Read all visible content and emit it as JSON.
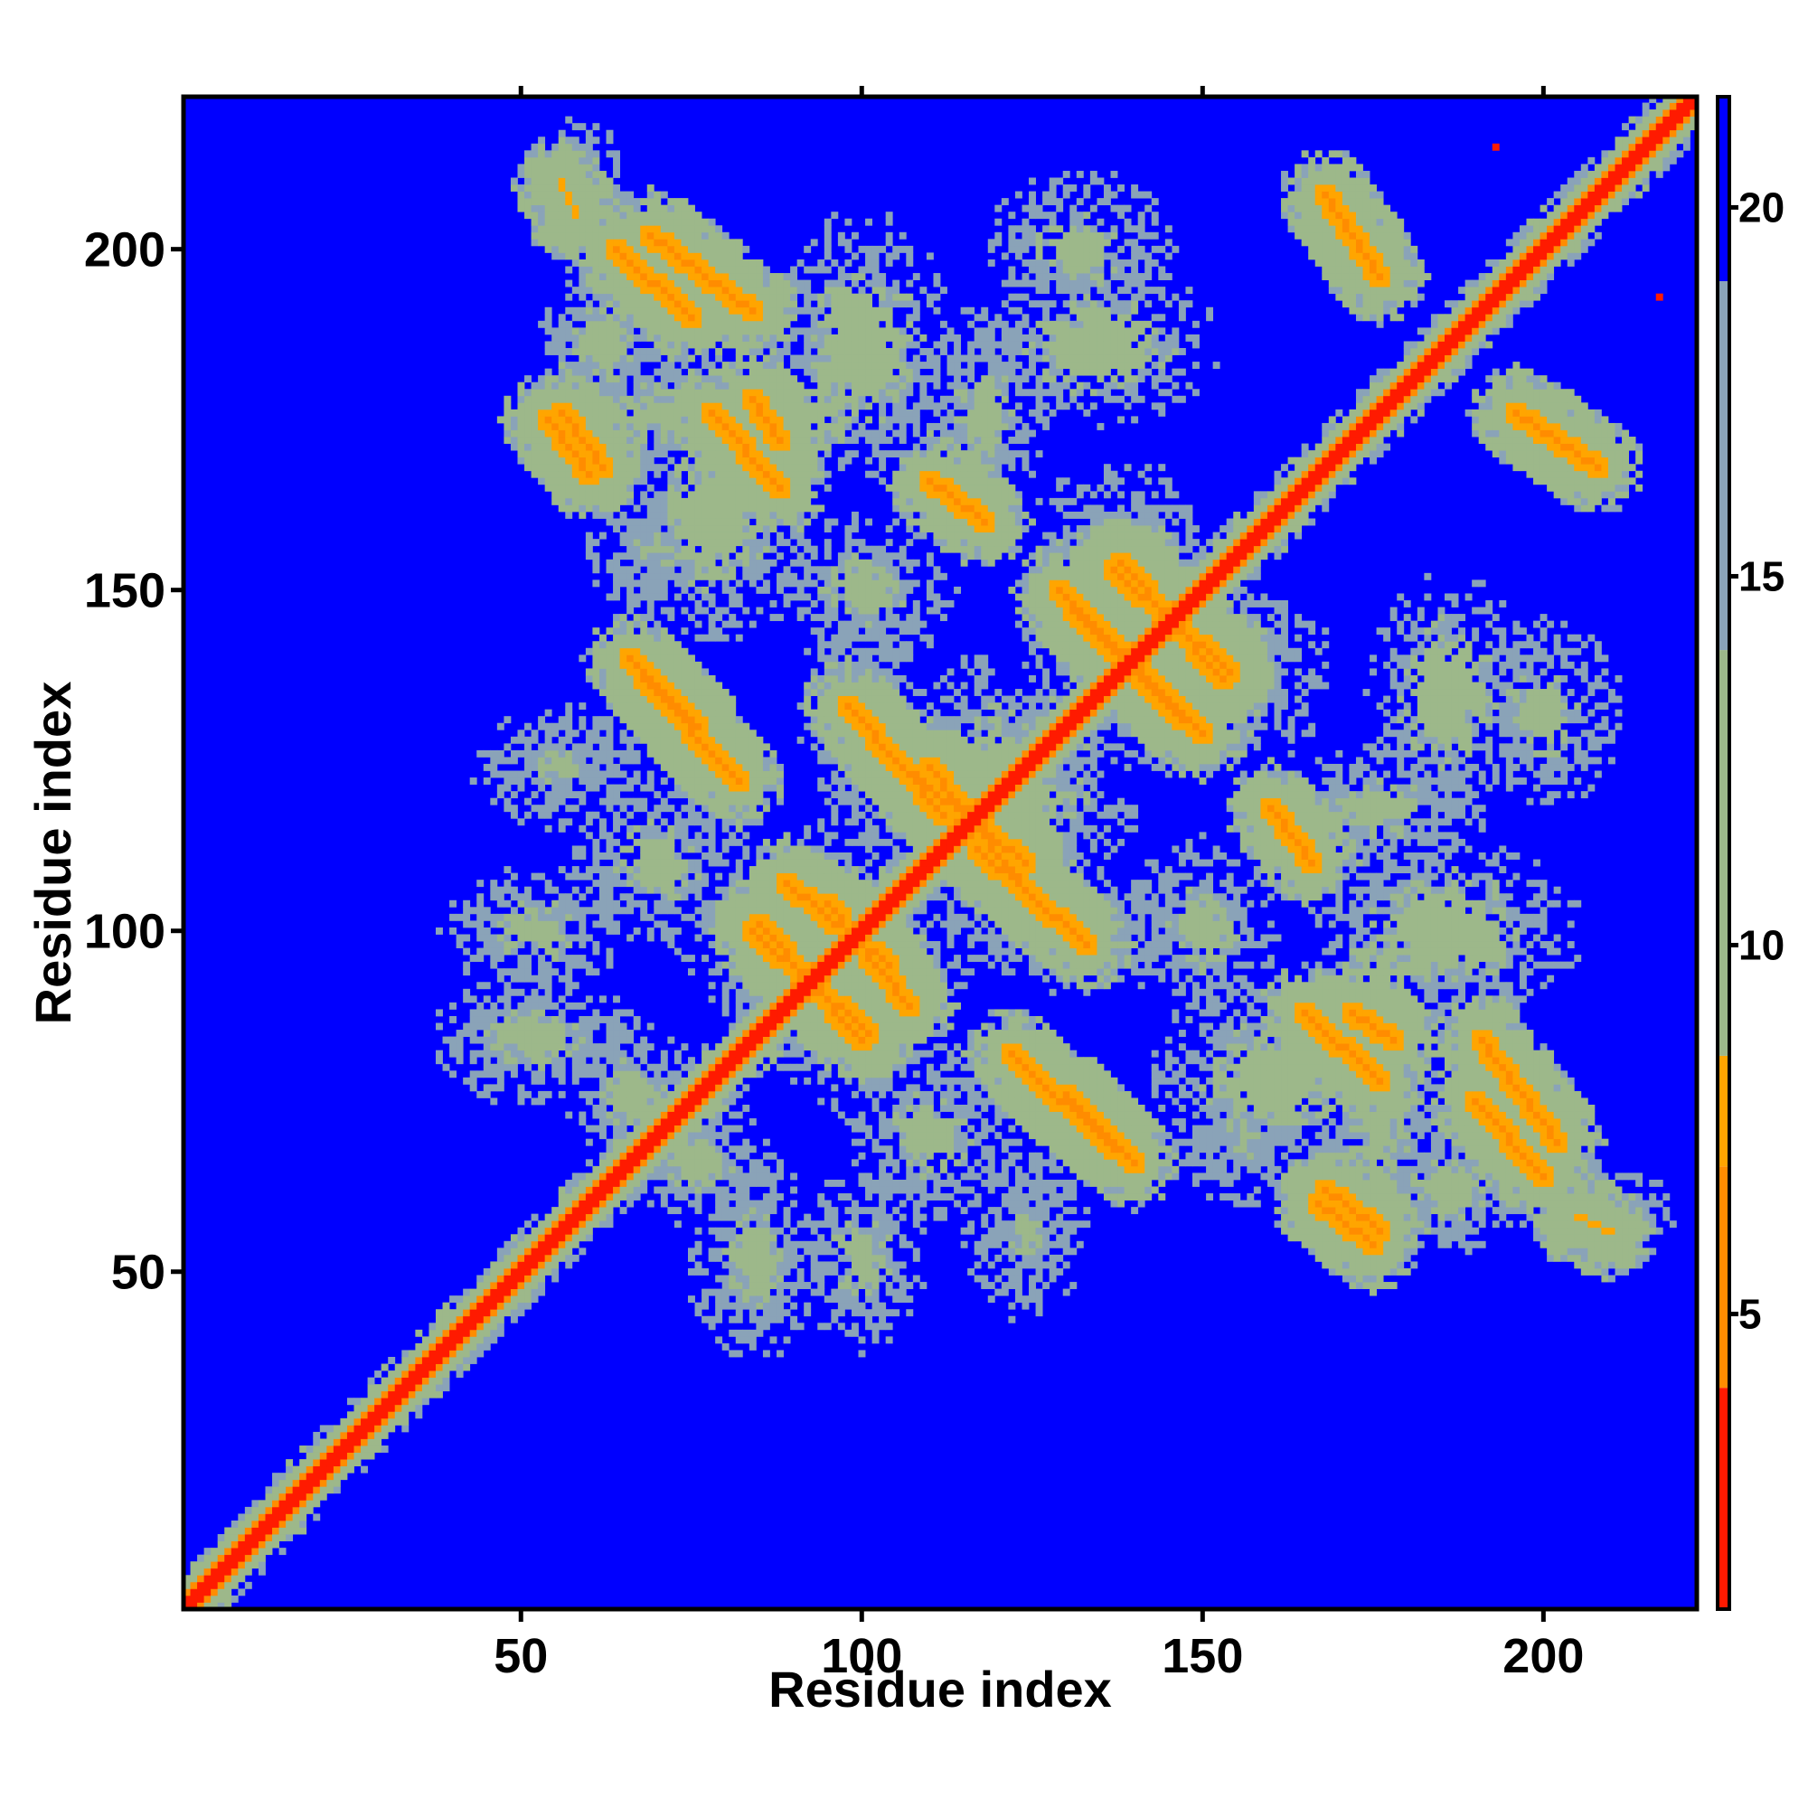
{
  "chart_data": {
    "type": "heatmap",
    "title": "",
    "xlabel": "Residue index",
    "ylabel": "Residue index",
    "xlim": [
      1,
      222
    ],
    "ylim": [
      1,
      222
    ],
    "x_ticks": [
      50,
      100,
      150,
      200
    ],
    "y_ticks": [
      50,
      100,
      150,
      200
    ],
    "colorbar": {
      "ticks": [
        5,
        10,
        15,
        20
      ],
      "range": [
        1,
        21.5
      ],
      "colors": [
        {
          "upto": 4.0,
          "color": "#ff1a00"
        },
        {
          "upto": 7.0,
          "color": "#ff8c00"
        },
        {
          "upto": 8.5,
          "color": "#ffa500"
        },
        {
          "upto": 14.0,
          "color": "#9db88a"
        },
        {
          "upto": 19.0,
          "color": "#8aa3b8"
        },
        {
          "upto": 99,
          "color": "#0000ff"
        }
      ]
    },
    "background_value": 21,
    "main_diagonal": {
      "from": 1,
      "to": 222
    },
    "contact_bands": [
      {
        "type": "anti",
        "i": [
          100,
          85
        ],
        "j": [
          84,
          101
        ],
        "min": 6.5
      },
      {
        "type": "anti",
        "i": [
          107,
          95
        ],
        "j": [
          89,
          104
        ],
        "min": 6.5
      },
      {
        "type": "anti",
        "i": [
          112,
          98
        ],
        "j": [
          117,
          133
        ],
        "min": 6.5
      },
      {
        "type": "anti",
        "i": [
          125,
          110
        ],
        "j": [
          105,
          124
        ],
        "min": 6.5
      },
      {
        "type": "anti",
        "i": [
          147,
          129
        ],
        "j": [
          131,
          150
        ],
        "min": 6.5
      },
      {
        "type": "anti",
        "i": [
          154,
          137
        ],
        "j": [
          138,
          153
        ],
        "min": 6.5
      },
      {
        "type": "anti",
        "i": [
          137,
          122
        ],
        "j": [
          68,
          82
        ],
        "min": 6.0
      },
      {
        "type": "anti",
        "i": [
          76,
          66
        ],
        "j": [
          130,
          140
        ],
        "min": 6.0
      },
      {
        "type": "anti",
        "i": [
          202,
          191
        ],
        "j": [
          69,
          84
        ],
        "min": 6.0
      },
      {
        "type": "anti",
        "i": [
          176,
          168
        ],
        "j": [
          56,
          62
        ],
        "min": 6.0
      },
      {
        "type": "anti",
        "i": [
          88,
          78
        ],
        "j": [
          165,
          176
        ],
        "min": 6.0
      },
      {
        "type": "anti",
        "i": [
          60,
          54
        ],
        "j": [
          167,
          175
        ],
        "min": 6.0
      },
      {
        "type": "anti",
        "i": [
          208,
          196
        ],
        "j": [
          168,
          176
        ],
        "min": 6.0
      },
      {
        "type": "anti",
        "i": [
          75,
          64
        ],
        "j": [
          190,
          200
        ],
        "min": 6.0
      },
      {
        "type": "anti",
        "i": [
          88,
          84
        ],
        "j": [
          172,
          178
        ],
        "min": 6.0
      },
      {
        "type": "anti",
        "i": [
          166,
          160
        ],
        "j": [
          110,
          118
        ],
        "min": 7.0
      },
      {
        "type": "anti",
        "i": [
          58,
          56
        ],
        "j": [
          205,
          210
        ],
        "min": 7.5
      }
    ],
    "contact_blobs": [
      {
        "x": 96,
        "y": 96,
        "w": 22,
        "h": 14,
        "min": 10
      },
      {
        "x": 118,
        "y": 120,
        "w": 24,
        "h": 14,
        "min": 10
      },
      {
        "x": 150,
        "y": 138,
        "w": 20,
        "h": 16,
        "min": 10
      },
      {
        "x": 135,
        "y": 186,
        "w": 18,
        "h": 12,
        "min": 10
      },
      {
        "x": 90,
        "y": 176,
        "w": 18,
        "h": 10,
        "min": 10
      },
      {
        "x": 70,
        "y": 176,
        "w": 16,
        "h": 10,
        "min": 11
      },
      {
        "x": 200,
        "y": 132,
        "w": 12,
        "h": 14,
        "min": 11
      },
      {
        "x": 186,
        "y": 100,
        "w": 20,
        "h": 14,
        "min": 10
      },
      {
        "x": 176,
        "y": 118,
        "w": 16,
        "h": 10,
        "min": 11
      },
      {
        "x": 56,
        "y": 124,
        "w": 14,
        "h": 10,
        "min": 12
      },
      {
        "x": 52,
        "y": 84,
        "w": 16,
        "h": 10,
        "min": 11
      },
      {
        "x": 52,
        "y": 100,
        "w": 14,
        "h": 10,
        "min": 11
      },
      {
        "x": 130,
        "y": 100,
        "w": 14,
        "h": 10,
        "min": 12
      },
      {
        "x": 160,
        "y": 78,
        "w": 18,
        "h": 14,
        "min": 10
      },
      {
        "x": 186,
        "y": 62,
        "w": 14,
        "h": 10,
        "min": 11
      },
      {
        "x": 110,
        "y": 70,
        "w": 14,
        "h": 14,
        "min": 11
      },
      {
        "x": 76,
        "y": 66,
        "w": 12,
        "h": 10,
        "min": 11
      },
      {
        "x": 208,
        "y": 58,
        "w": 12,
        "h": 8,
        "min": 12
      },
      {
        "x": 70,
        "y": 156,
        "w": 12,
        "h": 10,
        "min": 12
      },
      {
        "x": 100,
        "y": 150,
        "w": 14,
        "h": 12,
        "min": 11
      }
    ],
    "isolated_contacts": [
      {
        "x": 193,
        "y": 215,
        "value": 3
      },
      {
        "x": 217,
        "y": 193,
        "value": 3
      }
    ]
  }
}
